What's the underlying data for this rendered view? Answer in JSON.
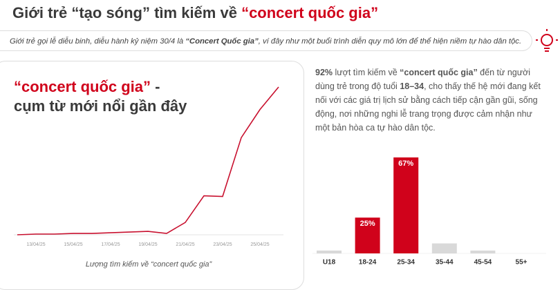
{
  "header": {
    "title": [
      {
        "text": "Giới trẻ “tạo sóng” tìm kiếm về "
      },
      {
        "text": "“concert quốc gia”",
        "color": "#d0021b"
      }
    ],
    "subtitle": [
      {
        "text": "Giới trẻ gọi lễ diễu binh, diễu hành kỷ niệm 30/4 là "
      },
      {
        "text": "“Concert Quốc gia”",
        "bold": true
      },
      {
        "text": ", ví đây như một buổi trình diễn quy mô lớn để thể hiện niềm tự hào dân tộc."
      }
    ]
  },
  "description": [
    {
      "text": "92%",
      "bold": true
    },
    {
      "text": " lượt tìm kiếm về "
    },
    {
      "text": "“concert quốc gia”",
      "bold": true
    },
    {
      "text": " đến từ người dùng trẻ trong độ tuổi "
    },
    {
      "text": "18–34",
      "bold": true
    },
    {
      "text": ", cho thấy thế hệ mới đang kết nối với các giá trị lịch sử bằng cách tiếp cận gần gũi, sống động, nơi những nghi lễ trang trọng được cảm nhận như một bản hòa ca tự hào dân tộc."
    }
  ],
  "chart_data": [
    {
      "type": "line",
      "title": [
        {
          "text": "“concert quốc gia”",
          "color": "#d0021b"
        },
        {
          "text": " -"
        },
        {
          "text": "cụm từ mới nổi gần đây"
        }
      ],
      "x_label": "Lượng tìm kiếm về “concert quốc gia”",
      "categories": [
        null,
        "13/04/25",
        null,
        "15/04/25",
        null,
        "17/04/25",
        null,
        "19/04/25",
        null,
        "21/04/25",
        null,
        "23/04/25",
        null,
        "25/04/25",
        null
      ],
      "values": [
        0,
        1,
        1,
        2,
        2,
        3,
        4,
        5,
        2,
        18,
        57,
        56,
        142,
        183,
        216
      ],
      "color": "#c8102e",
      "ylim": [
        0,
        220
      ]
    },
    {
      "type": "bar",
      "categories": [
        "U18",
        "18-24",
        "25-34",
        "35-44",
        "45-54",
        "55+"
      ],
      "values": [
        2,
        25,
        67,
        7,
        2,
        0
      ],
      "value_labels": [
        null,
        "25%",
        "67%",
        null,
        null,
        null
      ],
      "colors": [
        "#d9d9d9",
        "#d0021b",
        "#d0021b",
        "#d9d9d9",
        "#d9d9d9",
        "#d9d9d9"
      ],
      "ylim": [
        0,
        67
      ]
    }
  ]
}
